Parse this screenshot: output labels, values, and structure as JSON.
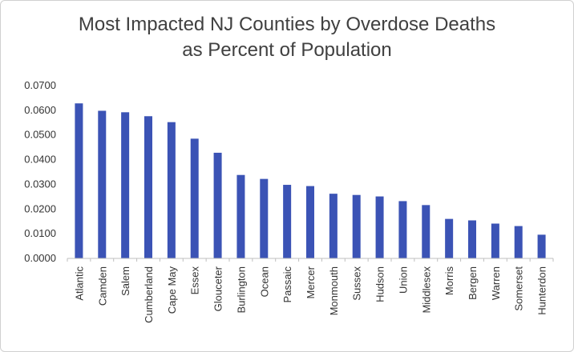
{
  "chart_data": {
    "type": "bar",
    "title_line1": "Most Impacted NJ Counties by Overdose Deaths",
    "title_line2": "as Percent of Population",
    "xlabel": "",
    "ylabel": "",
    "ylim": [
      0,
      0.07
    ],
    "yticks": [
      "0.0000",
      "0.0100",
      "0.0200",
      "0.0300",
      "0.0400",
      "0.0500",
      "0.0600",
      "0.0700"
    ],
    "grid": false,
    "legend": "none",
    "bar_color": "#3b53b5",
    "categories": [
      "Atlantic",
      "Camden",
      "Salem",
      "Cumberland",
      "Cape May",
      "Essex",
      "Glouceter",
      "Burlington",
      "Ocean",
      "Passaic",
      "Mercer",
      "Monmouth",
      "Sussex",
      "Hudson",
      "Union",
      "Middlesex",
      "Morris",
      "Bergen",
      "Warren",
      "Somerset",
      "Hunterdon"
    ],
    "values": [
      0.0628,
      0.0598,
      0.0592,
      0.0576,
      0.0552,
      0.0485,
      0.0428,
      0.0338,
      0.0322,
      0.0298,
      0.0293,
      0.0262,
      0.0257,
      0.0251,
      0.0232,
      0.0216,
      0.016,
      0.0154,
      0.0141,
      0.0131,
      0.0096
    ]
  }
}
